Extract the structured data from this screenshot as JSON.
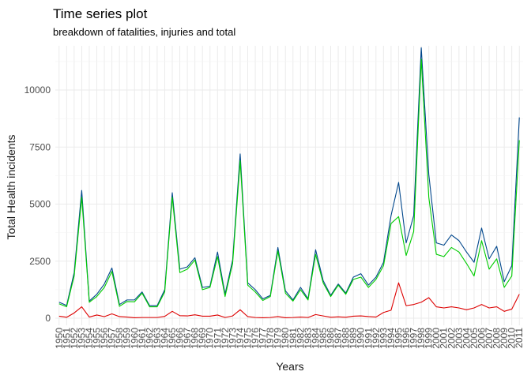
{
  "chart_data": {
    "type": "line",
    "title": "Time series plot",
    "subtitle": "breakdown of fatalities, injuries and total",
    "xlabel": "Years",
    "ylabel": "Total Health incidents",
    "x": [
      1950,
      1951,
      1952,
      1953,
      1954,
      1955,
      1956,
      1957,
      1958,
      1959,
      1960,
      1961,
      1962,
      1963,
      1964,
      1965,
      1966,
      1967,
      1968,
      1969,
      1970,
      1971,
      1972,
      1973,
      1974,
      1975,
      1976,
      1977,
      1978,
      1979,
      1980,
      1981,
      1982,
      1983,
      1984,
      1985,
      1986,
      1987,
      1988,
      1989,
      1990,
      1991,
      1992,
      1993,
      1994,
      1995,
      1996,
      1997,
      1998,
      1999,
      2000,
      2001,
      2002,
      2003,
      2004,
      2005,
      2006,
      2007,
      2008,
      2009,
      2010,
      2011
    ],
    "xlim": [
      1950,
      2011
    ],
    "ylim": [
      0,
      11800
    ],
    "yticks": [
      0,
      2500,
      5000,
      7500,
      10000
    ],
    "ytick_labels": [
      "0",
      "2500",
      "5000",
      "7500",
      "10000"
    ],
    "grid": true,
    "series": [
      {
        "color": "#00468b",
        "values": [
          700,
          560,
          2000,
          5600,
          750,
          1050,
          1500,
          2200,
          600,
          800,
          800,
          1150,
          550,
          550,
          1250,
          5500,
          2150,
          2250,
          2650,
          1350,
          1400,
          2900,
          1050,
          2550,
          7200,
          1550,
          1250,
          850,
          1000,
          3100,
          1200,
          800,
          1350,
          850,
          3000,
          1650,
          1000,
          1500,
          1100,
          1800,
          1950,
          1450,
          1800,
          2450,
          4500,
          5950,
          3300,
          4500,
          11850,
          6300,
          3300,
          3200,
          3650,
          3400,
          2900,
          2450,
          3950,
          2600,
          3150,
          1600,
          2300,
          8800
        ]
      },
      {
        "color": "#00cc00",
        "values": [
          630,
          500,
          1850,
          5300,
          700,
          950,
          1350,
          2050,
          520,
          730,
          720,
          1100,
          500,
          500,
          1150,
          5300,
          2000,
          2150,
          2550,
          1250,
          1350,
          2700,
          950,
          2400,
          6900,
          1450,
          1150,
          780,
          950,
          2950,
          1100,
          750,
          1250,
          800,
          2800,
          1550,
          950,
          1450,
          1050,
          1700,
          1800,
          1350,
          1700,
          2300,
          4150,
          4450,
          2750,
          3800,
          11350,
          5300,
          2800,
          2700,
          3100,
          2900,
          2400,
          1850,
          3400,
          2150,
          2600,
          1350,
          1850,
          7800
        ]
      },
      {
        "color": "#dd0000",
        "values": [
          90,
          40,
          230,
          500,
          50,
          140,
          70,
          190,
          70,
          50,
          20,
          30,
          30,
          30,
          80,
          300,
          110,
          100,
          150,
          90,
          90,
          140,
          30,
          100,
          370,
          70,
          30,
          20,
          30,
          70,
          20,
          30,
          50,
          30,
          160,
          100,
          40,
          60,
          40,
          90,
          100,
          70,
          50,
          250,
          350,
          1550,
          550,
          600,
          700,
          900,
          500,
          450,
          500,
          450,
          370,
          450,
          600,
          450,
          500,
          300,
          400,
          1050
        ]
      }
    ]
  }
}
